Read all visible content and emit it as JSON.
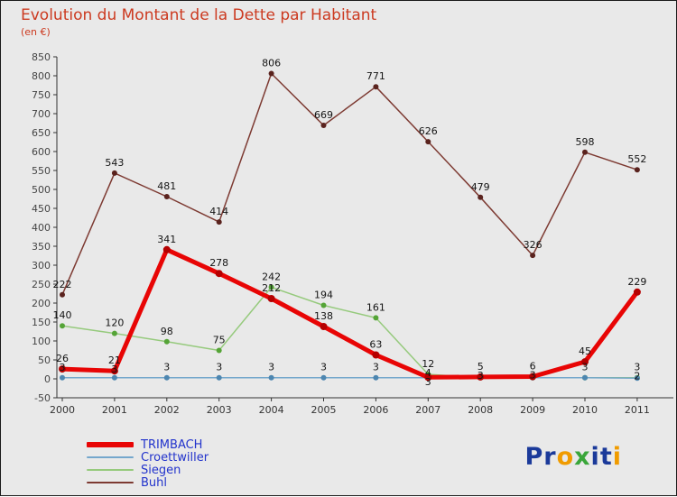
{
  "chart_data": {
    "type": "line",
    "title": "Evolution du Montant de la Dette par Habitant",
    "subtitle": "(en €)",
    "x": [
      2000,
      2001,
      2002,
      2003,
      2004,
      2005,
      2006,
      2007,
      2008,
      2009,
      2010,
      2011
    ],
    "ylim": [
      -50,
      850
    ],
    "ytick_step": 50,
    "grid": false,
    "legend_position": "bottom-left",
    "series": [
      {
        "name": "TRIMBACH",
        "color": "#e80505",
        "dot_color": "#b50000",
        "line_width": 5,
        "dot_radius": 4,
        "values": [
          26,
          21,
          341,
          278,
          212,
          138,
          63,
          4,
          5,
          6,
          45,
          229
        ]
      },
      {
        "name": "Croettwiller",
        "color": "#74a7cc",
        "dot_color": "#4d86b0",
        "line_width": 1.5,
        "dot_radius": 3,
        "values": [
          3,
          3,
          3,
          3,
          3,
          3,
          3,
          3,
          3,
          3,
          3,
          2
        ]
      },
      {
        "name": "Siegen",
        "color": "#96ca7d",
        "dot_color": "#55a437",
        "line_width": 1.5,
        "dot_radius": 3,
        "values": [
          140,
          120,
          98,
          75,
          242,
          194,
          161,
          12,
          3,
          3,
          3,
          3
        ]
      },
      {
        "name": "Buhl",
        "color": "#7d3a32",
        "dot_color": "#5a231e",
        "line_width": 1.5,
        "dot_radius": 3,
        "values": [
          222,
          543,
          481,
          414,
          806,
          669,
          771,
          626,
          479,
          326,
          598,
          552
        ]
      }
    ]
  },
  "colors": {
    "title": "#cc3a20",
    "axis": "#333333",
    "legend_text": "#2233cc",
    "background": "#e9e9e9"
  },
  "logo": {
    "name": "Proxiti",
    "letters": [
      {
        "ch": "P",
        "color": "#1b3a9a"
      },
      {
        "ch": "r",
        "color": "#1b3a9a"
      },
      {
        "ch": "o",
        "color": "#f09b00"
      },
      {
        "ch": "x",
        "color": "#3aa63a"
      },
      {
        "ch": "i",
        "color": "#1b3a9a"
      },
      {
        "ch": "t",
        "color": "#1b3a9a"
      },
      {
        "ch": "i",
        "color": "#f09b00"
      }
    ]
  }
}
